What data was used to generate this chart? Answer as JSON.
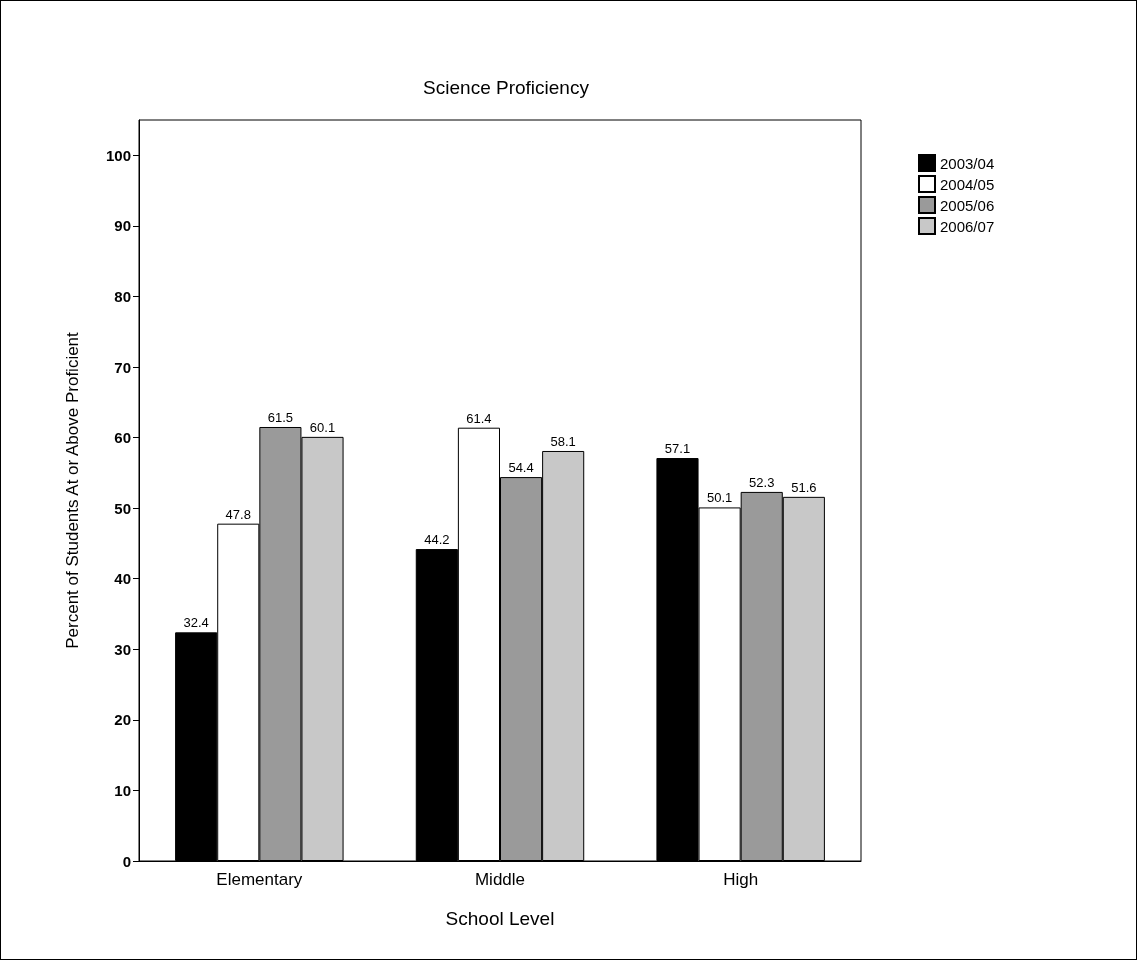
{
  "chart_data": {
    "type": "bar",
    "title": "Science Proficiency",
    "xlabel": "School Level",
    "ylabel": "Percent of Students At or Above Proficient",
    "categories": [
      "Elementary",
      "Middle",
      "High"
    ],
    "series": [
      {
        "name": "2003/04",
        "color": "#000000",
        "values": [
          32.4,
          44.2,
          57.1
        ]
      },
      {
        "name": "2004/05",
        "color": "#ffffff",
        "values": [
          47.8,
          61.4,
          50.1
        ]
      },
      {
        "name": "2005/06",
        "color": "#9a9a9a",
        "values": [
          61.5,
          54.4,
          52.3
        ]
      },
      {
        "name": "2006/07",
        "color": "#c8c8c8",
        "values": [
          60.1,
          58.1,
          51.6
        ]
      }
    ],
    "ylim": [
      0,
      105
    ],
    "yticks": [
      0,
      10,
      20,
      30,
      40,
      50,
      60,
      70,
      80,
      90,
      100
    ],
    "grid": false,
    "legend": "top right",
    "data_labels": true
  }
}
